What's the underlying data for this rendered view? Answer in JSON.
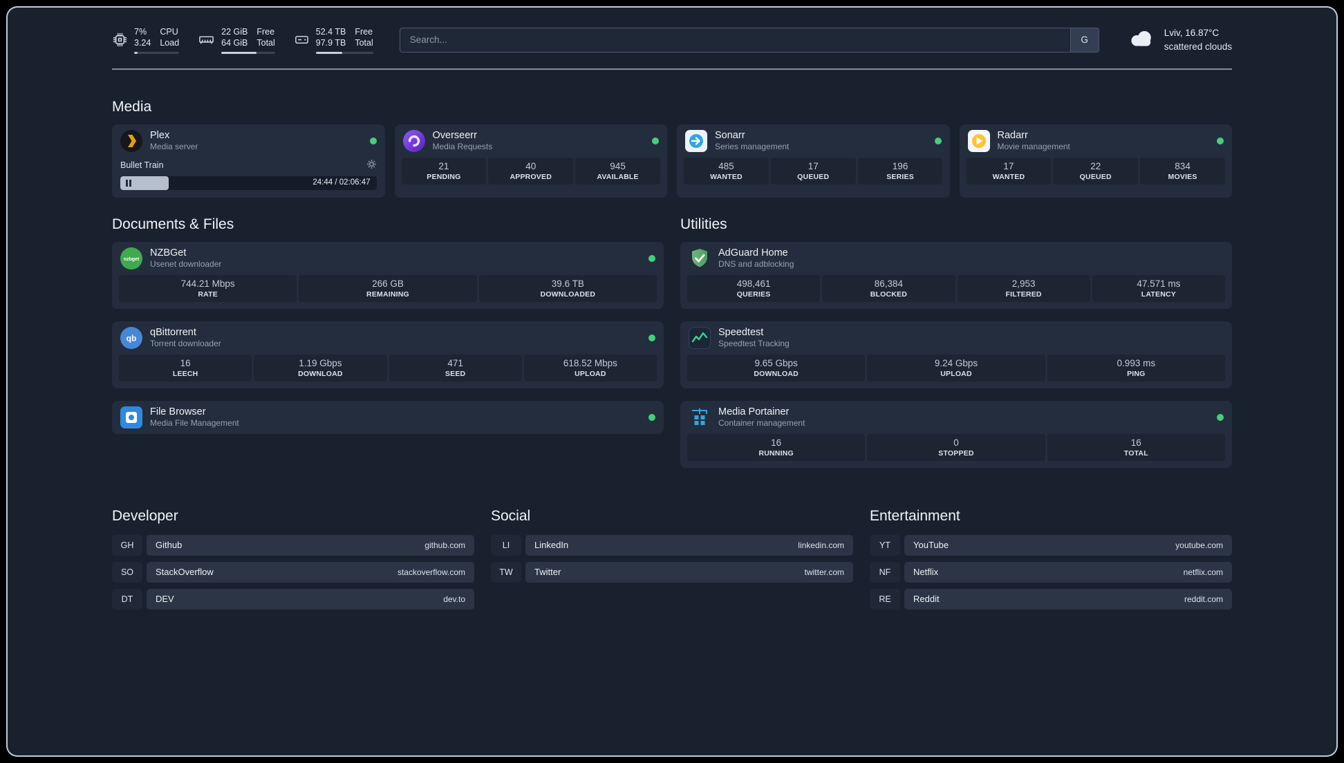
{
  "header": {
    "cpu": {
      "v1": "7%",
      "v2": "3.24",
      "l1": "CPU",
      "l2": "Load",
      "progress": 7
    },
    "memory": {
      "v1": "22 GiB",
      "v2": "64 GiB",
      "l1": "Free",
      "l2": "Total",
      "progress": 66
    },
    "disk": {
      "v1": "52.4 TB",
      "v2": "97.9 TB",
      "l1": "Free",
      "l2": "Total",
      "progress": 46
    },
    "search": {
      "placeholder": "Search...",
      "button_label": "G"
    },
    "weather": {
      "location": "Lviv, 16.87°C",
      "condition": "scattered clouds"
    }
  },
  "media": {
    "title": "Media",
    "plex": {
      "name": "Plex",
      "desc": "Media server",
      "now_playing": "Bullet Train",
      "time": "24:44 / 02:06:47",
      "progress": 19
    },
    "overseerr": {
      "name": "Overseerr",
      "desc": "Media Requests",
      "stats": [
        {
          "value": "21",
          "label": "PENDING"
        },
        {
          "value": "40",
          "label": "APPROVED"
        },
        {
          "value": "945",
          "label": "AVAILABLE"
        }
      ]
    },
    "sonarr": {
      "name": "Sonarr",
      "desc": "Series management",
      "stats": [
        {
          "value": "485",
          "label": "WANTED"
        },
        {
          "value": "17",
          "label": "QUEUED"
        },
        {
          "value": "196",
          "label": "SERIES"
        }
      ]
    },
    "radarr": {
      "name": "Radarr",
      "desc": "Movie management",
      "stats": [
        {
          "value": "17",
          "label": "WANTED"
        },
        {
          "value": "22",
          "label": "QUEUED"
        },
        {
          "value": "834",
          "label": "MOVIES"
        }
      ]
    }
  },
  "documents": {
    "title": "Documents & Files",
    "nzbget": {
      "name": "NZBGet",
      "desc": "Usenet downloader",
      "stats": [
        {
          "value": "744.21 Mbps",
          "label": "RATE"
        },
        {
          "value": "266 GB",
          "label": "REMAINING"
        },
        {
          "value": "39.6 TB",
          "label": "DOWNLOADED"
        }
      ]
    },
    "qbittorrent": {
      "name": "qBittorrent",
      "desc": "Torrent downloader",
      "stats": [
        {
          "value": "16",
          "label": "LEECH"
        },
        {
          "value": "1.19 Gbps",
          "label": "DOWNLOAD"
        },
        {
          "value": "471",
          "label": "SEED"
        },
        {
          "value": "618.52 Mbps",
          "label": "UPLOAD"
        }
      ]
    },
    "filebrowser": {
      "name": "File Browser",
      "desc": "Media File Management"
    }
  },
  "utilities": {
    "title": "Utilities",
    "adguard": {
      "name": "AdGuard Home",
      "desc": "DNS and adblocking",
      "stats": [
        {
          "value": "498,461",
          "label": "QUERIES"
        },
        {
          "value": "86,384",
          "label": "BLOCKED"
        },
        {
          "value": "2,953",
          "label": "FILTERED"
        },
        {
          "value": "47.571 ms",
          "label": "LATENCY"
        }
      ]
    },
    "speedtest": {
      "name": "Speedtest",
      "desc": "Speedtest Tracking",
      "stats": [
        {
          "value": "9.65 Gbps",
          "label": "DOWNLOAD"
        },
        {
          "value": "9.24 Gbps",
          "label": "UPLOAD"
        },
        {
          "value": "0.993 ms",
          "label": "PING"
        }
      ]
    },
    "portainer": {
      "name": "Media Portainer",
      "desc": "Container management",
      "stats": [
        {
          "value": "16",
          "label": "RUNNING"
        },
        {
          "value": "0",
          "label": "STOPPED"
        },
        {
          "value": "16",
          "label": "TOTAL"
        }
      ]
    }
  },
  "bookmarks": {
    "developer": {
      "title": "Developer",
      "items": [
        {
          "abbr": "GH",
          "name": "Github",
          "url": "github.com"
        },
        {
          "abbr": "SO",
          "name": "StackOverflow",
          "url": "stackoverflow.com"
        },
        {
          "abbr": "DT",
          "name": "DEV",
          "url": "dev.to"
        }
      ]
    },
    "social": {
      "title": "Social",
      "items": [
        {
          "abbr": "LI",
          "name": "LinkedIn",
          "url": "linkedin.com"
        },
        {
          "abbr": "TW",
          "name": "Twitter",
          "url": "twitter.com"
        }
      ]
    },
    "entertainment": {
      "title": "Entertainment",
      "items": [
        {
          "abbr": "YT",
          "name": "YouTube",
          "url": "youtube.com"
        },
        {
          "abbr": "NF",
          "name": "Netflix",
          "url": "netflix.com"
        },
        {
          "abbr": "RE",
          "name": "Reddit",
          "url": "reddit.com"
        }
      ]
    }
  },
  "icons": {
    "nzbget_label": "nzbget",
    "qbittorrent_label": "qb"
  },
  "colors": {
    "status_ok": "#44d07b"
  }
}
